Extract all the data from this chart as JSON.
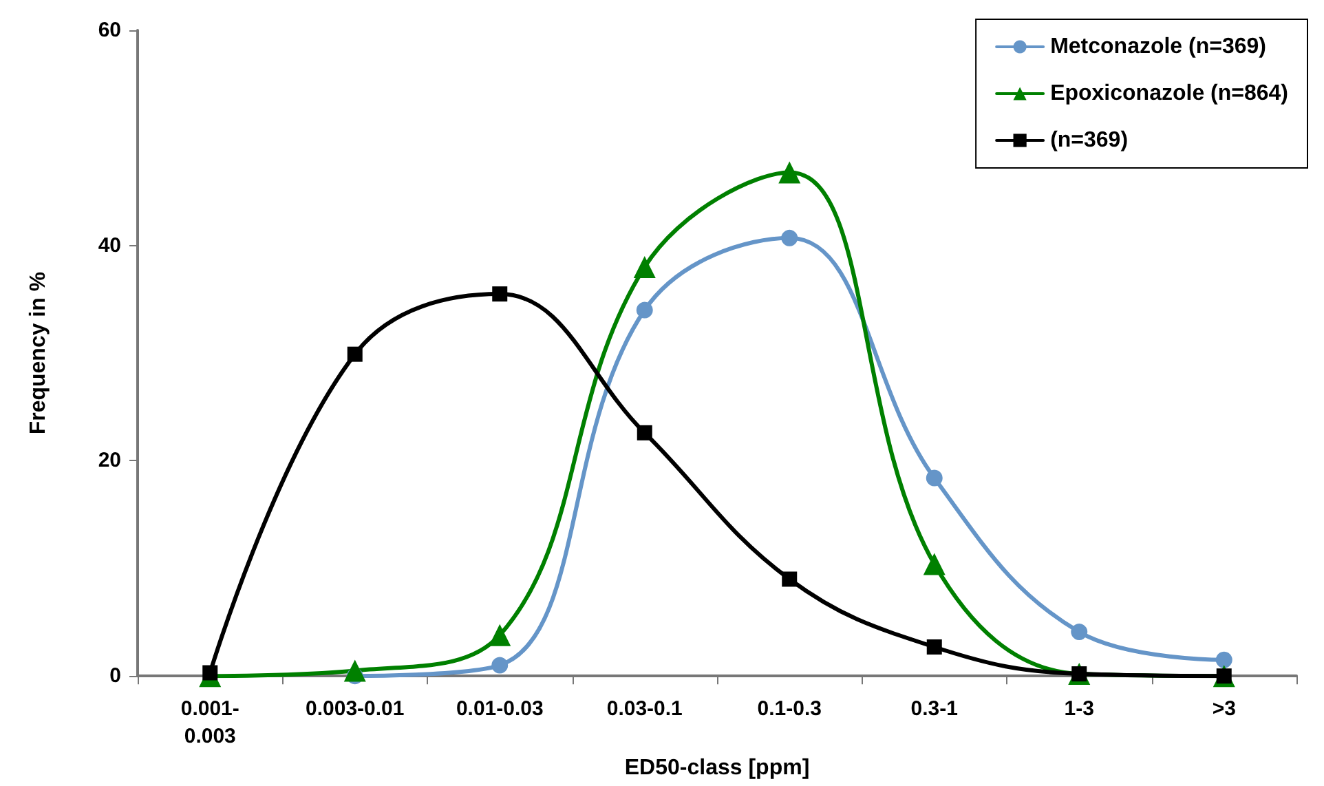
{
  "chart_data": {
    "type": "line",
    "xlabel": "ED50-class [ppm]",
    "ylabel": "Frequency in %",
    "categories": [
      "0.001-\n0.003",
      "0.003-0.01",
      "0.01-0.03",
      "0.03-0.1",
      "0.1-0.3",
      "0.3-1",
      "1-3",
      ">3"
    ],
    "series": [
      {
        "name": "Metconazole (n=369)",
        "color": "#6595c8",
        "marker": "circle",
        "values": [
          null,
          0,
          1,
          34,
          40.7,
          18.4,
          4.1,
          1.5
        ]
      },
      {
        "name": "Epoxiconazole (n=864)",
        "color": "#008000",
        "marker": "triangle",
        "values": [
          0,
          0.5,
          3.8,
          38,
          46.8,
          10.4,
          0.2,
          0
        ]
      },
      {
        "name": "(n=369)",
        "color": "#000000",
        "marker": "square",
        "values": [
          0.3,
          29.9,
          35.5,
          22.6,
          9,
          2.7,
          0.2,
          0
        ]
      }
    ],
    "ylim": [
      0,
      60
    ],
    "yticks": [
      0,
      20,
      40,
      60
    ],
    "grid": false,
    "legend": "top right",
    "line_style": "solid"
  }
}
